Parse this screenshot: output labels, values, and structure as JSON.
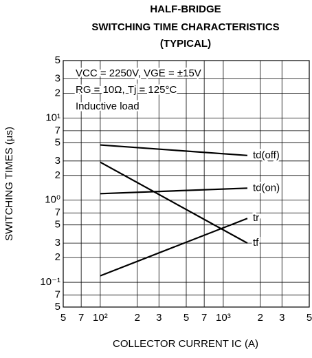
{
  "chart_data": {
    "type": "line",
    "title": [
      "HALF-BRIDGE",
      "SWITCHING TIME CHARACTERISTICS",
      "(TYPICAL)"
    ],
    "xlabel": "COLLECTOR CURRENT IC (A)",
    "ylabel": "SWITCHING TIMES (µs)",
    "annotations": [
      "VCC = 2250V, VGE = ±15V",
      "RG = 10Ω, Tj = 125°C",
      "Inductive load"
    ],
    "x": [
      100,
      1570
    ],
    "series": [
      {
        "name": "td(off)",
        "color": "#000000",
        "values": [
          4.7,
          3.5
        ]
      },
      {
        "name": "td(on)",
        "color": "#000000",
        "values": [
          1.2,
          1.4
        ]
      },
      {
        "name": "tr",
        "color": "#000000",
        "values": [
          0.12,
          0.6
        ]
      },
      {
        "name": "tf",
        "color": "#000000",
        "values": [
          2.9,
          0.3
        ]
      }
    ],
    "xlog": true,
    "ylog": true,
    "grid": true,
    "xlim": [
      50,
      5000
    ],
    "xticks": [
      {
        "value": 50,
        "label": "5"
      },
      {
        "value": 70,
        "label": "7"
      },
      {
        "value": 100,
        "label": "10²"
      },
      {
        "value": 200,
        "label": "2"
      },
      {
        "value": 300,
        "label": "3"
      },
      {
        "value": 500,
        "label": "5"
      },
      {
        "value": 700,
        "label": "7"
      },
      {
        "value": 1000,
        "label": "10³"
      },
      {
        "value": 2000,
        "label": "2"
      },
      {
        "value": 3000,
        "label": "3"
      },
      {
        "value": 5000,
        "label": "5"
      }
    ],
    "ylim": [
      0.05,
      50
    ],
    "yticks": [
      {
        "value": 0.05,
        "label": "5"
      },
      {
        "value": 0.07,
        "label": "7"
      },
      {
        "value": 0.1,
        "label": "10⁻¹"
      },
      {
        "value": 0.2,
        "label": "2"
      },
      {
        "value": 0.3,
        "label": "3"
      },
      {
        "value": 0.5,
        "label": "5"
      },
      {
        "value": 0.7,
        "label": "7"
      },
      {
        "value": 1,
        "label": "10⁰"
      },
      2,
      3,
      5,
      7,
      {
        "value": 10,
        "label": "10¹"
      },
      {
        "value": 20,
        "label": "2"
      },
      {
        "value": 30,
        "label": "3"
      },
      {
        "value": 50,
        "label": "5"
      }
    ]
  }
}
